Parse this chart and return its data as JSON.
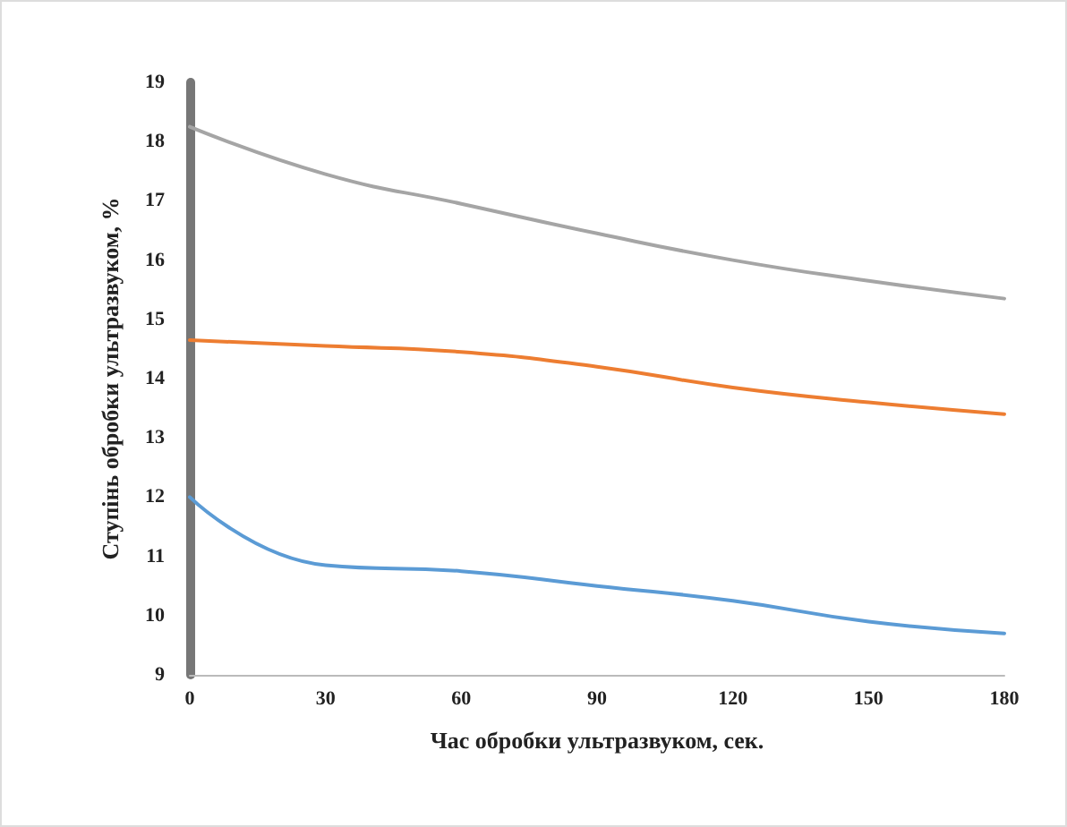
{
  "chart_data": {
    "type": "line",
    "xlabel": "Час обробки ультразвуком, сек.",
    "ylabel": "Ступінь обробки ультразвуком, %",
    "x": [
      0,
      30,
      60,
      90,
      120,
      150,
      180
    ],
    "series": [
      {
        "color": "#a5a5a5",
        "values": [
          18.25,
          17.45,
          16.95,
          16.45,
          16.0,
          15.65,
          15.35
        ]
      },
      {
        "color": "#ed7d31",
        "values": [
          14.65,
          14.55,
          14.45,
          14.2,
          13.85,
          13.6,
          13.4
        ]
      },
      {
        "color": "#5b9bd5",
        "values": [
          12.0,
          10.85,
          10.75,
          10.5,
          10.25,
          9.9,
          9.7
        ]
      }
    ],
    "xlim": [
      0,
      180
    ],
    "xticks": [
      0,
      30,
      60,
      90,
      120,
      150,
      180
    ],
    "ylim": [
      9,
      19
    ],
    "yticks": [
      9,
      10,
      11,
      12,
      13,
      14,
      15,
      16,
      17,
      18,
      19
    ],
    "marker": "none",
    "line_style": "solid"
  }
}
